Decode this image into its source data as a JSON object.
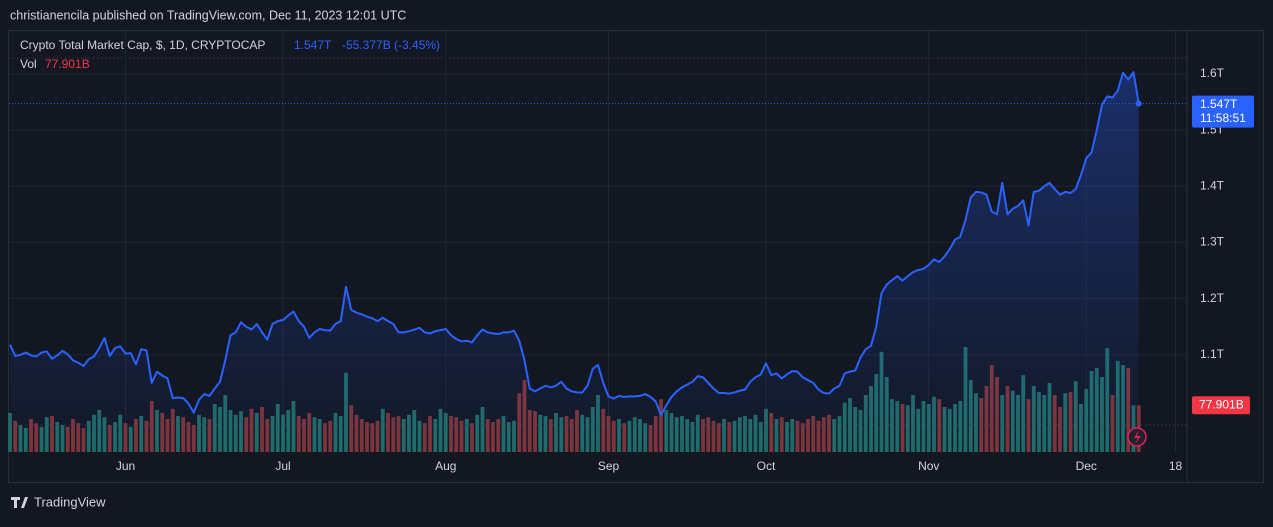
{
  "header": {
    "byline": "christianencila published on TradingView.com, Dec 11, 2023 12:01 UTC"
  },
  "footer": {
    "brand": "TradingView"
  },
  "chart_data": {
    "type": "line",
    "title": "Crypto Total Market Cap, $, 1D, CRYPTOCAP",
    "last_price_label": "1.547T",
    "change_label": "-55.377B (-3.45%)",
    "countdown": "11:58:51",
    "color": "#2962ff",
    "ylim": [
      0.927,
      1.655
    ],
    "yticks": [
      {
        "value": 1.1,
        "label": "1.1T"
      },
      {
        "value": 1.2,
        "label": "1.2T"
      },
      {
        "value": 1.3,
        "label": "1.3T"
      },
      {
        "value": 1.4,
        "label": "1.4T"
      },
      {
        "value": 1.5,
        "label": "1.5T"
      },
      {
        "value": 1.6,
        "label": "1.6T"
      }
    ],
    "grid": true,
    "categories": [
      null,
      null,
      null,
      null,
      null,
      null,
      null,
      null,
      null,
      null,
      null,
      null,
      null,
      null,
      null,
      null,
      null,
      null,
      null,
      null,
      null,
      null,
      "Jun",
      null,
      null,
      null,
      null,
      null,
      null,
      null,
      null,
      null,
      null,
      null,
      null,
      null,
      null,
      null,
      null,
      null,
      null,
      null,
      null,
      null,
      null,
      null,
      null,
      null,
      null,
      null,
      null,
      null,
      "Jul",
      null,
      null,
      null,
      null,
      null,
      null,
      null,
      null,
      null,
      null,
      null,
      null,
      null,
      null,
      null,
      null,
      null,
      null,
      null,
      null,
      null,
      null,
      null,
      null,
      null,
      null,
      null,
      null,
      null,
      null,
      "Aug",
      null,
      null,
      null,
      null,
      null,
      null,
      null,
      null,
      null,
      null,
      null,
      null,
      null,
      null,
      null,
      null,
      null,
      null,
      null,
      null,
      null,
      null,
      null,
      null,
      null,
      null,
      null,
      null,
      null,
      null,
      "Sep",
      null,
      null,
      null,
      null,
      null,
      null,
      null,
      null,
      null,
      null,
      null,
      null,
      null,
      null,
      null,
      null,
      null,
      null,
      null,
      null,
      null,
      null,
      null,
      null,
      null,
      null,
      null,
      null,
      null,
      "Oct",
      null,
      null,
      null,
      null,
      null,
      null,
      null,
      null,
      null,
      null,
      null,
      null,
      null,
      null,
      null,
      null,
      null,
      null,
      null,
      null,
      null,
      null,
      null,
      null,
      null,
      null,
      null,
      null,
      null,
      null,
      "Nov",
      null,
      null,
      null,
      null,
      null,
      null,
      null,
      null,
      null,
      null,
      null,
      null,
      null,
      null,
      null,
      null,
      null,
      null,
      null,
      null,
      null,
      null,
      null,
      null,
      null,
      null,
      null,
      null,
      null,
      "Dec",
      null,
      null,
      null,
      null,
      null,
      null,
      null,
      null,
      null,
      null,
      null,
      null,
      null,
      null,
      null,
      null,
      "18",
      null,
      null
    ],
    "values": [
      1.118,
      1.098,
      1.1,
      1.104,
      1.099,
      1.097,
      1.104,
      1.106,
      1.093,
      1.099,
      1.107,
      1.101,
      1.09,
      1.086,
      1.08,
      1.092,
      1.097,
      1.112,
      1.13,
      1.098,
      1.112,
      1.115,
      1.102,
      1.103,
      1.083,
      1.11,
      1.108,
      1.05,
      1.07,
      1.063,
      1.058,
      1.023,
      1.024,
      1.023,
      1.013,
      0.997,
      1.02,
      1.03,
      1.027,
      1.04,
      1.052,
      1.09,
      1.135,
      1.14,
      1.158,
      1.15,
      1.145,
      1.155,
      1.14,
      1.127,
      1.155,
      1.16,
      1.162,
      1.17,
      1.177,
      1.16,
      1.15,
      1.13,
      1.14,
      1.146,
      1.144,
      1.143,
      1.155,
      1.16,
      1.221,
      1.18,
      1.175,
      1.172,
      1.168,
      1.165,
      1.16,
      1.166,
      1.16,
      1.155,
      1.14,
      1.14,
      1.142,
      1.145,
      1.148,
      1.14,
      1.138,
      1.142,
      1.144,
      1.146,
      1.135,
      1.128,
      1.124,
      1.125,
      1.122,
      1.135,
      1.145,
      1.14,
      1.138,
      1.137,
      1.14,
      1.14,
      1.143,
      1.125,
      1.09,
      1.04,
      1.035,
      1.04,
      1.045,
      1.042,
      1.045,
      1.052,
      1.04,
      1.035,
      1.033,
      1.033,
      1.045,
      1.075,
      1.082,
      1.05,
      1.026,
      1.022,
      1.027,
      1.025,
      1.026,
      1.026,
      1.027,
      1.03,
      1.025,
      1.017,
      0.993,
      1.01,
      1.025,
      1.035,
      1.042,
      1.047,
      1.052,
      1.062,
      1.06,
      1.05,
      1.04,
      1.032,
      1.032,
      1.031,
      1.033,
      1.036,
      1.038,
      1.052,
      1.06,
      1.065,
      1.085,
      1.064,
      1.067,
      1.058,
      1.065,
      1.071,
      1.07,
      1.06,
      1.055,
      1.05,
      1.038,
      1.032,
      1.031,
      1.04,
      1.045,
      1.067,
      1.07,
      1.072,
      1.095,
      1.11,
      1.116,
      1.15,
      1.21,
      1.225,
      1.233,
      1.24,
      1.232,
      1.24,
      1.247,
      1.251,
      1.253,
      1.26,
      1.27,
      1.265,
      1.275,
      1.288,
      1.305,
      1.31,
      1.34,
      1.38,
      1.39,
      1.389,
      1.385,
      1.355,
      1.35,
      1.406,
      1.35,
      1.36,
      1.365,
      1.375,
      1.33,
      1.39,
      1.392,
      1.4,
      1.406,
      1.395,
      1.385,
      1.39,
      1.388,
      1.395,
      1.42,
      1.45,
      1.46,
      1.5,
      1.545,
      1.56,
      1.558,
      1.57,
      1.602,
      1.59,
      1.603,
      1.547,
      null,
      null,
      null,
      null,
      null,
      null,
      null,
      null,
      null
    ],
    "volume": {
      "name": "Vol",
      "last_label": "77.901B",
      "up_color": "#1f6b66",
      "down_color": "#7f3336",
      "label_color": "#f23645",
      "vlim": [
        0,
        250
      ],
      "values": [
        65,
        52,
        45,
        40,
        55,
        48,
        42,
        58,
        60,
        50,
        45,
        42,
        55,
        48,
        40,
        52,
        62,
        70,
        58,
        45,
        50,
        62,
        48,
        42,
        55,
        60,
        52,
        85,
        70,
        65,
        55,
        72,
        60,
        58,
        50,
        45,
        62,
        58,
        55,
        80,
        75,
        95,
        70,
        62,
        68,
        58,
        72,
        65,
        75,
        55,
        60,
        80,
        62,
        70,
        85,
        60,
        55,
        65,
        58,
        55,
        48,
        52,
        65,
        60,
        132,
        78,
        62,
        55,
        50,
        48,
        52,
        72,
        65,
        58,
        60,
        55,
        62,
        70,
        52,
        48,
        60,
        55,
        72,
        65,
        60,
        58,
        52,
        55,
        48,
        62,
        75,
        55,
        50,
        55,
        60,
        50,
        52,
        98,
        120,
        70,
        68,
        62,
        60,
        55,
        65,
        58,
        60,
        55,
        70,
        62,
        58,
        75,
        95,
        72,
        60,
        52,
        55,
        48,
        52,
        58,
        55,
        48,
        45,
        60,
        88,
        70,
        65,
        58,
        60,
        55,
        50,
        62,
        55,
        58,
        52,
        48,
        55,
        50,
        52,
        58,
        60,
        55,
        62,
        50,
        72,
        65,
        55,
        58,
        50,
        55,
        52,
        48,
        55,
        60,
        52,
        58,
        62,
        55,
        60,
        82,
        90,
        75,
        70,
        95,
        110,
        130,
        167,
        125,
        88,
        85,
        80,
        78,
        95,
        72,
        85,
        80,
        92,
        88,
        75,
        72,
        80,
        85,
        175,
        120,
        98,
        90,
        110,
        145,
        125,
        95,
        110,
        102,
        95,
        128,
        88,
        110,
        100,
        95,
        115,
        95,
        75,
        98,
        100,
        118,
        80,
        105,
        135,
        140,
        125,
        173,
        95,
        152,
        145,
        140,
        78,
        77.901,
        null,
        null,
        null,
        null,
        null,
        null,
        null,
        null,
        null
      ]
    }
  }
}
